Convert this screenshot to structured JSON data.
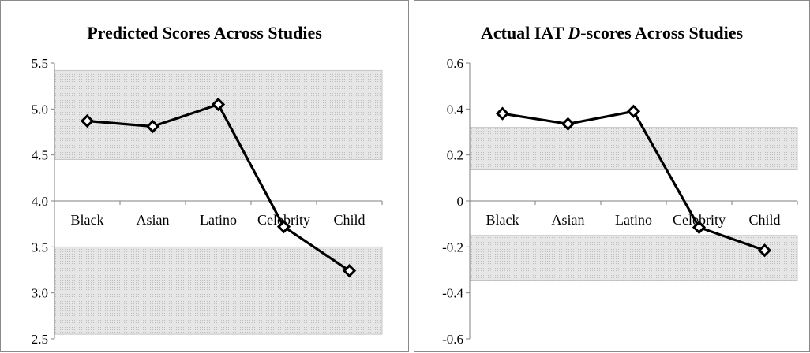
{
  "chart_data": [
    {
      "type": "line",
      "title": "Predicted Scores Across Studies",
      "categories": [
        "Black",
        "Asian",
        "Latino",
        "Celebrity",
        "Child"
      ],
      "values": [
        4.87,
        4.81,
        5.05,
        3.72,
        3.24
      ],
      "ylim": [
        2.5,
        5.5
      ],
      "yticks": [
        "2.5",
        "3.0",
        "3.5",
        "4.0",
        "4.5",
        "5.0",
        "5.5"
      ],
      "category_axis_at": 4.0,
      "shaded_bands": [
        [
          4.45,
          5.42
        ],
        [
          2.55,
          3.5
        ]
      ],
      "grid": false,
      "marker": "diamond",
      "line_color": "#000000",
      "band_color": "#d9d9d9"
    },
    {
      "type": "line",
      "title_parts": [
        "Actual IAT ",
        "D",
        "-scores Across Studies"
      ],
      "categories": [
        "Black",
        "Asian",
        "Latino",
        "Celebrity",
        "Child"
      ],
      "values": [
        0.38,
        0.335,
        0.39,
        -0.115,
        -0.215
      ],
      "ylim": [
        -0.6,
        0.6
      ],
      "yticks": [
        "-0.6",
        "-0.4",
        "-0.2",
        "0",
        "0.2",
        "0.4",
        "0.6"
      ],
      "category_axis_at": 0,
      "shaded_bands": [
        [
          0.135,
          0.32
        ],
        [
          -0.345,
          -0.15
        ]
      ],
      "grid": false,
      "marker": "diamond",
      "line_color": "#000000",
      "band_color": "#d9d9d9"
    }
  ]
}
